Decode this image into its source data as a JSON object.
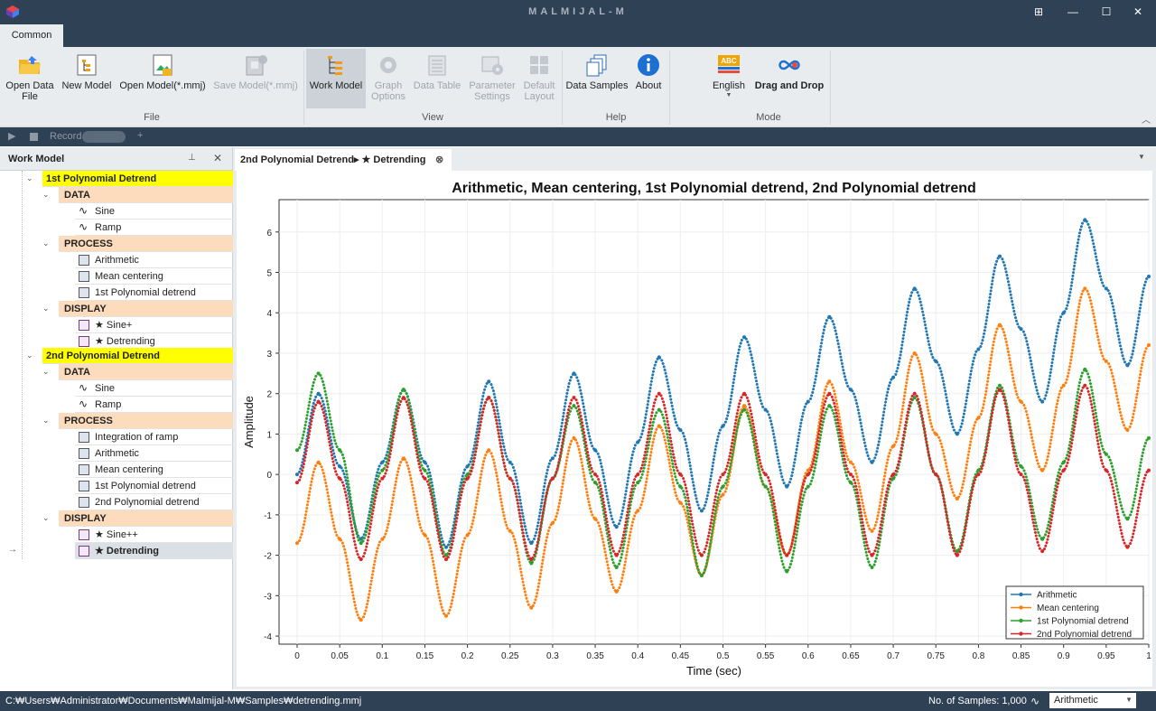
{
  "window": {
    "title": "MALMIJAL-M"
  },
  "tabs": [
    "Common"
  ],
  "ribbon": {
    "buttons": [
      {
        "label": "Open Data\nFile",
        "enabled": true
      },
      {
        "label": "New Model",
        "enabled": true
      },
      {
        "label": "Open Model(*.mmj)",
        "enabled": true
      },
      {
        "label": "Save Model(*.mmj)",
        "enabled": false
      },
      {
        "label": "Work Model",
        "enabled": true,
        "selected": true
      },
      {
        "label": "Graph\nOptions",
        "enabled": false
      },
      {
        "label": "Data Table",
        "enabled": false
      },
      {
        "label": "Parameter\nSettings",
        "enabled": false
      },
      {
        "label": "Default\nLayout",
        "enabled": false
      },
      {
        "label": "Data Samples",
        "enabled": true
      },
      {
        "label": "About",
        "enabled": true
      },
      {
        "label": "English",
        "enabled": true
      },
      {
        "label": "Drag and Drop",
        "enabled": true
      }
    ],
    "groups": [
      "File",
      "View",
      "Help",
      "Mode"
    ]
  },
  "record_bar": {
    "record_label": "Record"
  },
  "work_model": {
    "title": "Work Model",
    "projects": [
      {
        "name": "1st Polynomial Detrend",
        "data": [
          "Sine",
          "Ramp"
        ],
        "process": [
          "Arithmetic",
          "Mean centering",
          "1st Polynomial detrend"
        ],
        "display": [
          "★ Sine+",
          "★ Detrending"
        ]
      },
      {
        "name": "2nd Polynomial Detrend",
        "data": [
          "Sine",
          "Ramp"
        ],
        "process": [
          "Integration of ramp",
          "Arithmetic",
          "Mean centering",
          "1st Polynomial detrend",
          "2nd Polynomial detrend"
        ],
        "display": [
          "★ Sine++",
          "★ Detrending"
        ]
      }
    ],
    "categories": [
      "DATA",
      "PROCESS",
      "DISPLAY"
    ]
  },
  "document_tab": {
    "label": "2nd Polynomial Detrend▸ ★ Detrending"
  },
  "chart_data": {
    "type": "scatter",
    "title": "Arithmetic, Mean centering, 1st Polynomial detrend, 2nd Polynomial detrend",
    "xlabel": "Time (sec)",
    "ylabel": "Amplitude",
    "xlim": [
      0,
      1
    ],
    "ylim": [
      -4.2,
      6.8
    ],
    "xticks": [
      "0",
      "0.05",
      "0.1",
      "0.15",
      "0.2",
      "0.25",
      "0.3",
      "0.35",
      "0.4",
      "0.45",
      "0.5",
      "0.55",
      "0.6",
      "0.65",
      "0.7",
      "0.75",
      "0.8",
      "0.85",
      "0.9",
      "0.95",
      "1"
    ],
    "yticks": [
      "-4",
      "-3",
      "-2",
      "-1",
      "0",
      "1",
      "2",
      "3",
      "4",
      "5",
      "6"
    ],
    "grid": true,
    "legend_position": "bottom-right",
    "x": [
      0,
      0.025,
      0.05,
      0.075,
      0.1,
      0.125,
      0.15,
      0.175,
      0.2,
      0.225,
      0.25,
      0.275,
      0.3,
      0.325,
      0.35,
      0.375,
      0.4,
      0.425,
      0.45,
      0.475,
      0.5,
      0.525,
      0.55,
      0.575,
      0.6,
      0.625,
      0.65,
      0.675,
      0.7,
      0.725,
      0.75,
      0.775,
      0.8,
      0.825,
      0.85,
      0.875,
      0.9,
      0.925,
      0.95,
      0.975,
      1
    ],
    "series": [
      {
        "name": "Arithmetic",
        "color": "#1f77b4",
        "values": [
          0,
          2.0,
          0.2,
          -1.6,
          0.3,
          2.1,
          0.3,
          -1.8,
          0.2,
          2.3,
          0.3,
          -1.7,
          0.4,
          2.5,
          0.6,
          -1.3,
          0.8,
          2.9,
          1.1,
          -0.9,
          1.2,
          3.4,
          1.6,
          -0.3,
          1.8,
          3.9,
          2.1,
          0.3,
          2.4,
          4.6,
          2.8,
          1.0,
          3.1,
          5.4,
          3.6,
          1.8,
          4.0,
          6.3,
          4.6,
          2.7,
          4.9
        ]
      },
      {
        "name": "Mean centering",
        "color": "#ff7f0e",
        "values": [
          -1.7,
          0.3,
          -1.6,
          -3.6,
          -1.6,
          0.4,
          -1.5,
          -3.5,
          -1.5,
          0.6,
          -1.4,
          -3.3,
          -1.2,
          0.9,
          -1.1,
          -2.9,
          -0.9,
          1.2,
          -0.7,
          -2.5,
          -0.5,
          1.7,
          -0.3,
          -2.0,
          0.1,
          2.3,
          0.3,
          -1.4,
          0.7,
          3.0,
          1.0,
          -0.6,
          1.4,
          3.7,
          1.8,
          0.1,
          2.2,
          4.6,
          2.8,
          1.1,
          3.2
        ]
      },
      {
        "name": "1st Polynomial detrend",
        "color": "#2ca02c",
        "values": [
          0.6,
          2.5,
          0.6,
          -1.7,
          0.1,
          2.1,
          0.1,
          -2.0,
          0.0,
          1.9,
          -0.1,
          -2.2,
          -0.1,
          1.7,
          -0.2,
          -2.3,
          -0.2,
          1.6,
          -0.3,
          -2.5,
          -0.3,
          1.6,
          -0.3,
          -2.4,
          -0.3,
          1.7,
          -0.2,
          -2.3,
          -0.1,
          1.9,
          0.0,
          -1.9,
          0.1,
          2.2,
          0.2,
          -1.6,
          0.3,
          2.6,
          0.5,
          -1.1,
          0.9
        ]
      },
      {
        "name": "2nd Polynomial detrend",
        "color": "#d62728",
        "values": [
          -0.2,
          1.8,
          -0.1,
          -2.1,
          -0.1,
          1.9,
          -0.1,
          -2.1,
          -0.1,
          1.9,
          -0.1,
          -2.1,
          -0.1,
          1.9,
          0.0,
          -2.0,
          0.0,
          2.0,
          0.0,
          -2.0,
          0.0,
          2.0,
          0.0,
          -2.0,
          0.0,
          2.0,
          0.0,
          -2.0,
          0.0,
          2.0,
          0.0,
          -2.0,
          0.0,
          2.1,
          0.0,
          -1.9,
          0.1,
          2.2,
          0.1,
          -1.8,
          0.1
        ]
      }
    ]
  },
  "status": {
    "path": "C:₩Users₩Administrator₩Documents₩Malmijal-M₩Samples₩detrending.mmj",
    "samples": "No. of Samples: 1,000",
    "display_mode": "Arithmetic"
  }
}
